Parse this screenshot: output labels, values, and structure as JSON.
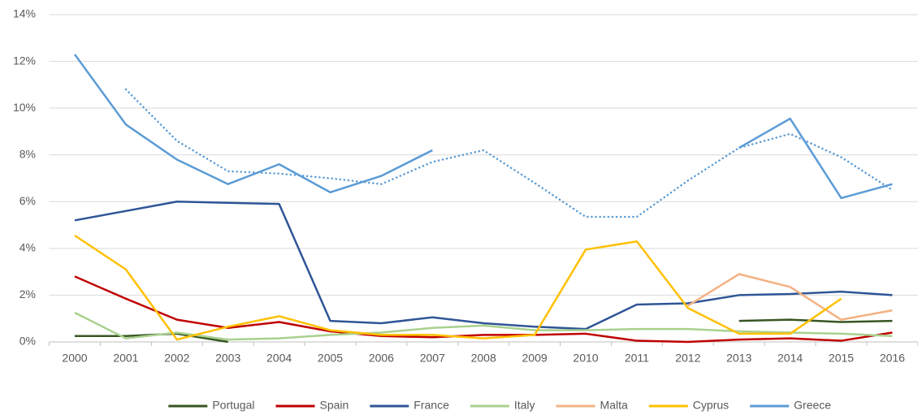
{
  "chart_data": {
    "type": "line",
    "categories": [
      "2000",
      "2001",
      "2002",
      "2003",
      "2004",
      "2005",
      "2006",
      "2007",
      "2008",
      "2009",
      "2010",
      "2011",
      "2012",
      "2013",
      "2014",
      "2015",
      "2016"
    ],
    "ylim": [
      0,
      14
    ],
    "yticks": [
      {
        "value": 0,
        "label": "0%"
      },
      {
        "value": 2,
        "label": "2%"
      },
      {
        "value": 4,
        "label": "4%"
      },
      {
        "value": 6,
        "label": "6%"
      },
      {
        "value": 8,
        "label": "8%"
      },
      {
        "value": 10,
        "label": "10%"
      },
      {
        "value": 12,
        "label": "12%"
      },
      {
        "value": 14,
        "label": "14%"
      }
    ],
    "grid": true,
    "legend": "bottom",
    "series": [
      {
        "name": "Portugal",
        "color": "#375623",
        "values": [
          0.25,
          0.25,
          0.35,
          0.0,
          null,
          null,
          null,
          null,
          null,
          null,
          null,
          null,
          null,
          0.9,
          0.95,
          0.85,
          0.9
        ]
      },
      {
        "name": "Spain",
        "color": "#c00000",
        "values": [
          2.8,
          1.85,
          0.95,
          0.6,
          0.85,
          0.45,
          0.25,
          0.2,
          0.3,
          0.3,
          0.35,
          0.05,
          0.0,
          0.1,
          0.15,
          0.05,
          0.4
        ]
      },
      {
        "name": "France",
        "color": "#2f5597",
        "values": [
          5.2,
          5.6,
          6.0,
          5.95,
          5.9,
          0.9,
          0.8,
          1.05,
          0.8,
          0.65,
          0.55,
          1.6,
          1.65,
          2.0,
          2.05,
          2.15,
          2.0
        ]
      },
      {
        "name": "Italy",
        "color": "#a9d18e",
        "values": [
          1.25,
          0.15,
          0.4,
          0.1,
          0.15,
          0.3,
          0.4,
          0.6,
          0.7,
          0.5,
          0.5,
          0.55,
          0.55,
          0.45,
          0.4,
          0.35,
          0.25
        ]
      },
      {
        "name": "Malta",
        "color": "#f4b183",
        "values": [
          null,
          null,
          null,
          null,
          null,
          null,
          null,
          null,
          null,
          null,
          null,
          null,
          1.55,
          2.9,
          2.35,
          0.95,
          1.35
        ]
      },
      {
        "name": "Cyprus",
        "color": "#ffc000",
        "values": [
          4.55,
          3.1,
          0.1,
          0.65,
          1.1,
          0.5,
          0.3,
          0.3,
          0.15,
          0.3,
          3.95,
          4.3,
          1.45,
          0.35,
          0.35,
          1.85,
          null
        ]
      },
      {
        "name": "Greece",
        "color": "#5b9bd5",
        "values": [
          12.3,
          9.3,
          7.8,
          6.75,
          7.6,
          6.4,
          7.1,
          8.2,
          null,
          null,
          null,
          null,
          null,
          8.3,
          9.55,
          6.15,
          6.75
        ]
      },
      {
        "color": "#5b9bd5",
        "style": "dotted",
        "values": [
          null,
          10.8,
          8.6,
          7.3,
          7.2,
          7.0,
          6.75,
          7.7,
          8.2,
          6.8,
          5.35,
          5.35,
          6.9,
          8.3,
          8.9,
          7.9,
          6.5
        ]
      }
    ]
  }
}
